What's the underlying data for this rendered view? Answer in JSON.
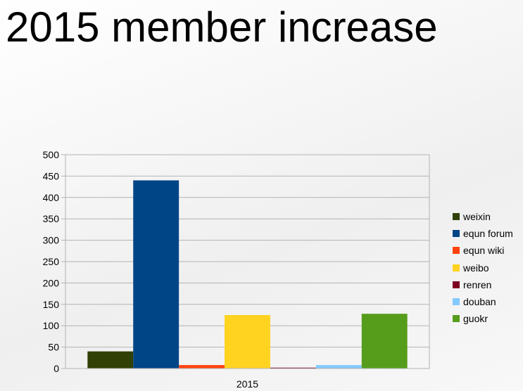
{
  "slide": {
    "title": "2015 member increase"
  },
  "chart_data": {
    "type": "bar",
    "categories": [
      "2015"
    ],
    "series": [
      {
        "name": "weixin",
        "values": [
          40
        ],
        "color": "#314004"
      },
      {
        "name": "equn forum",
        "values": [
          440
        ],
        "color": "#004586"
      },
      {
        "name": "equn wiki",
        "values": [
          8
        ],
        "color": "#ff420e"
      },
      {
        "name": "weibo",
        "values": [
          125
        ],
        "color": "#ffd320"
      },
      {
        "name": "renren",
        "values": [
          2
        ],
        "color": "#7e0021"
      },
      {
        "name": "douban",
        "values": [
          8
        ],
        "color": "#83caff"
      },
      {
        "name": "guokr",
        "values": [
          128
        ],
        "color": "#579d1c"
      }
    ],
    "y_ticks": [
      0,
      50,
      100,
      150,
      200,
      250,
      300,
      350,
      400,
      450,
      500
    ],
    "ylim": [
      0,
      500
    ],
    "grid": true,
    "legend_position": "right"
  }
}
